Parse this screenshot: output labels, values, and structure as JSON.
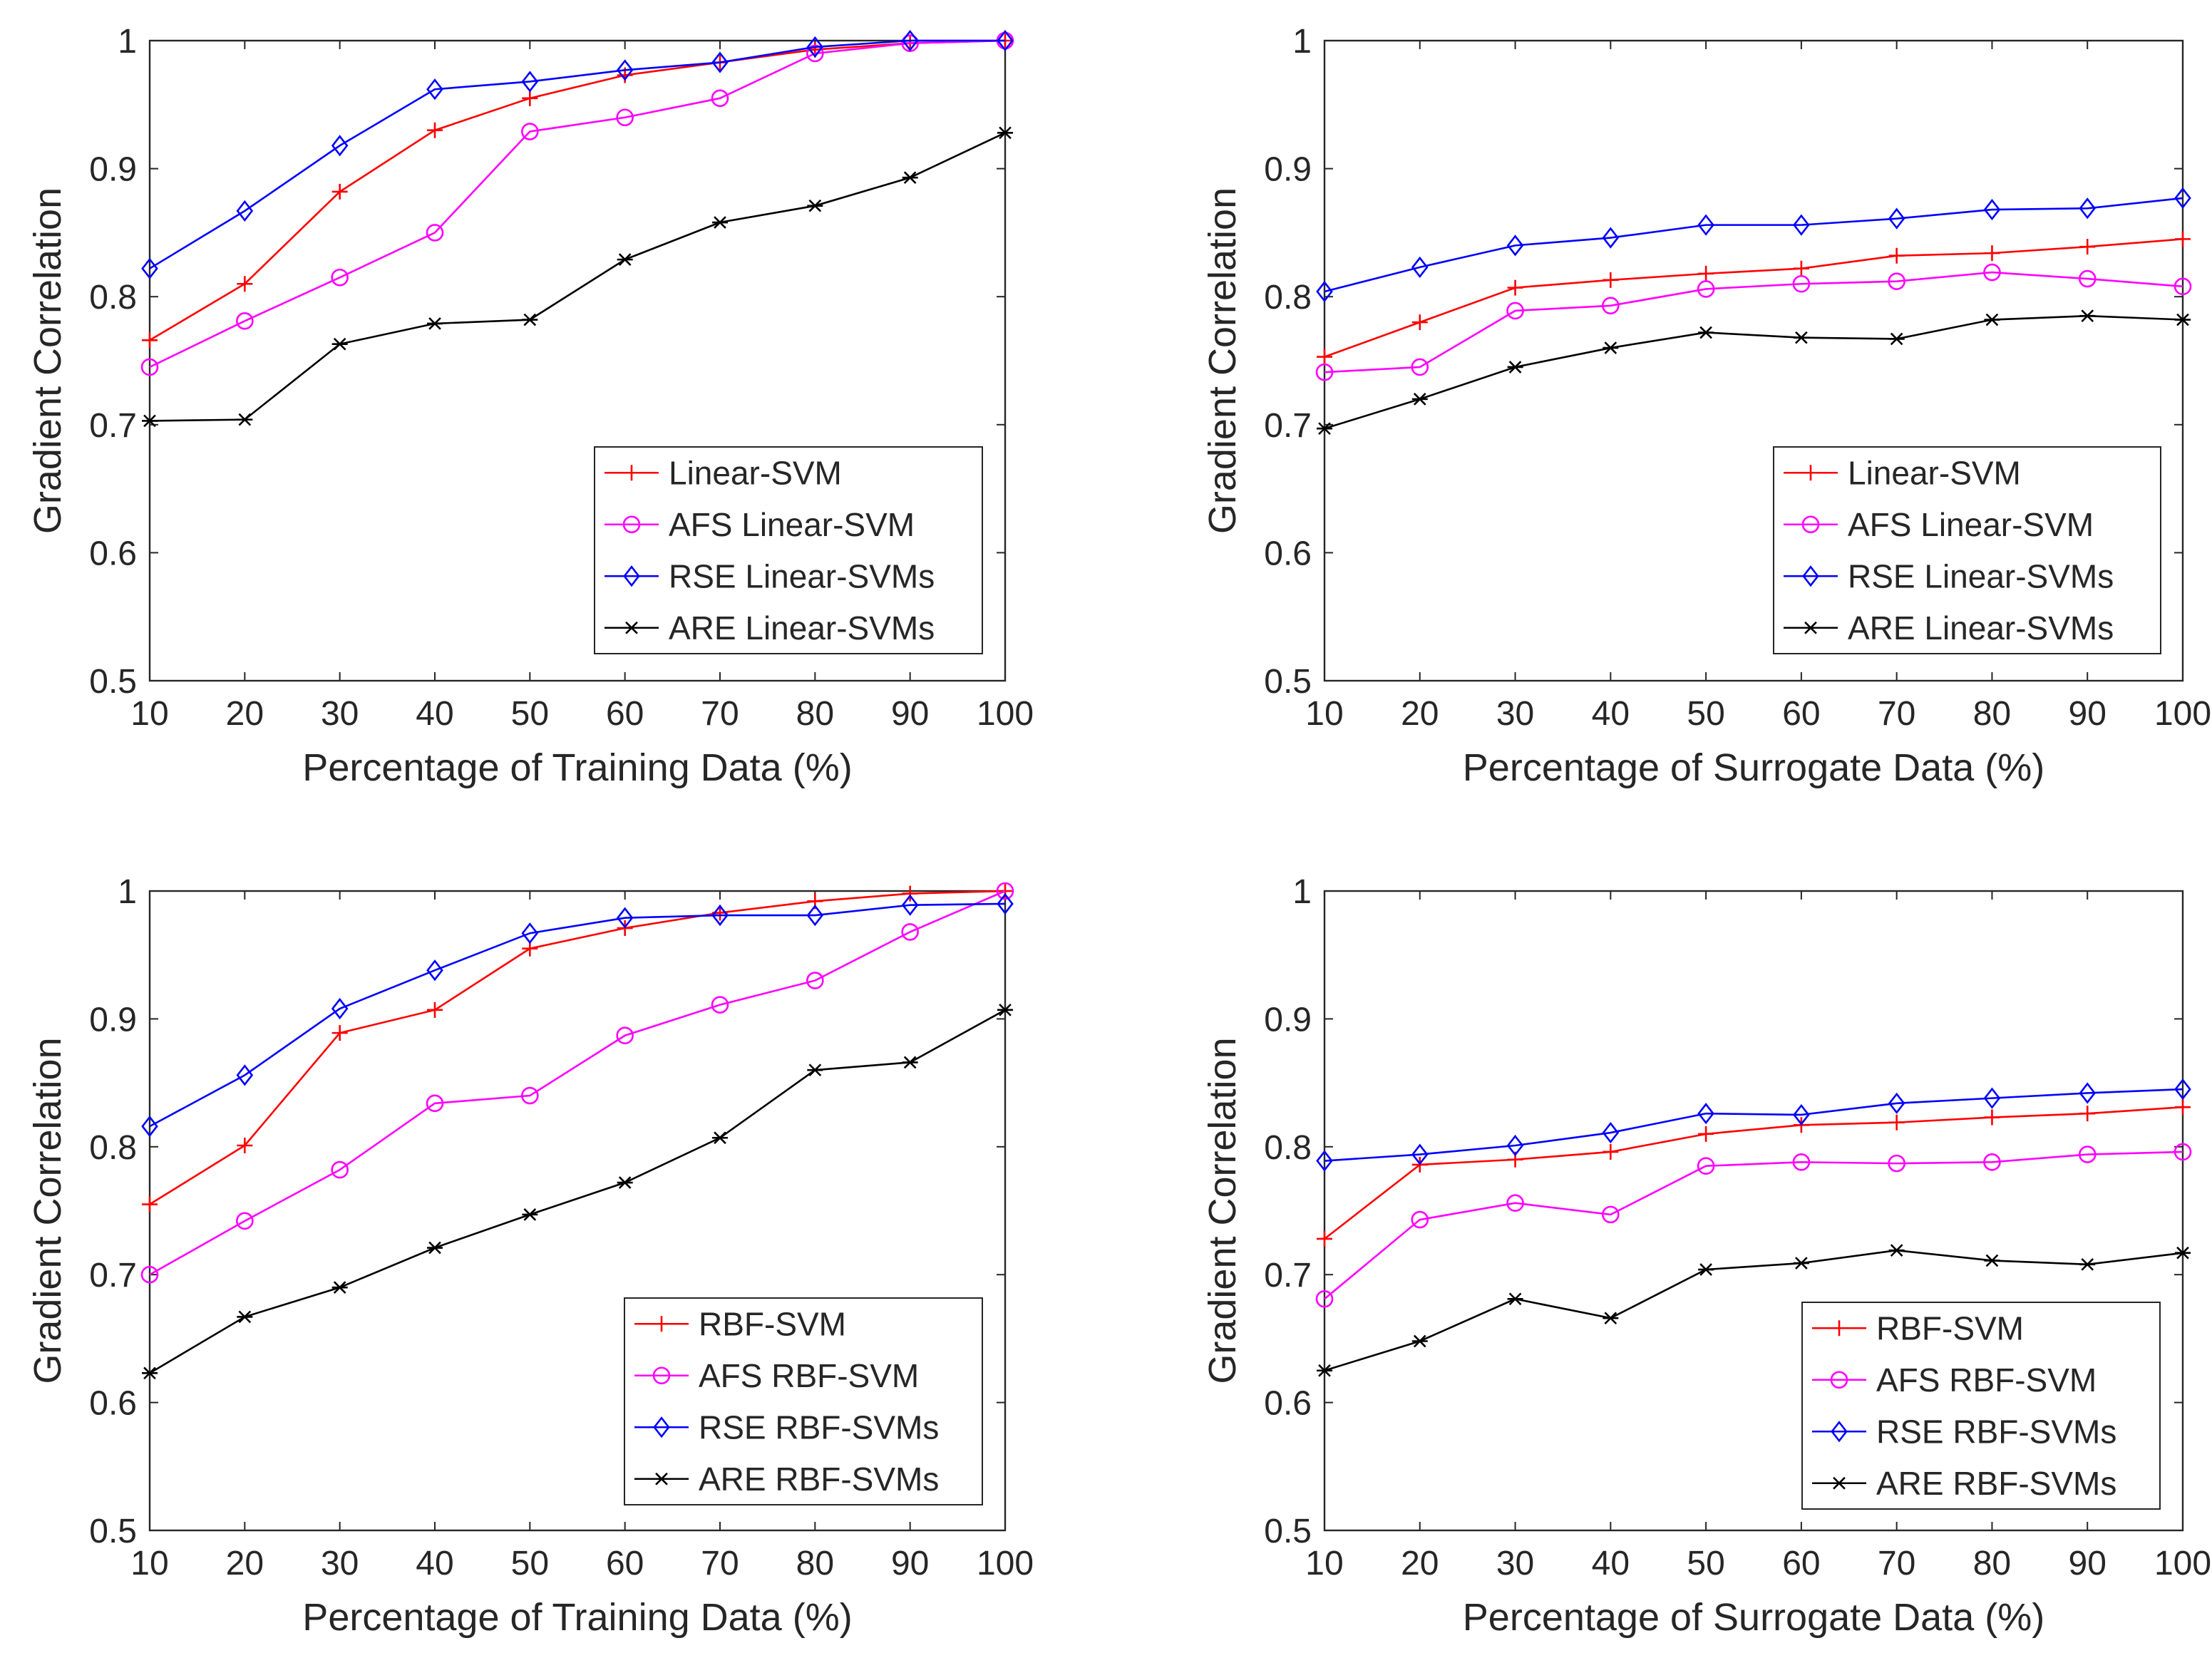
{
  "chart_data": [
    {
      "type": "line",
      "title": "",
      "xlabel": "Percentage of Training Data (%)",
      "ylabel": "Gradient Correlation",
      "x": [
        10,
        20,
        30,
        40,
        50,
        60,
        70,
        80,
        90,
        100
      ],
      "x_ticks": [
        "10",
        "20",
        "30",
        "40",
        "50",
        "60",
        "70",
        "80",
        "90",
        "100"
      ],
      "y_ticks": [
        "0.5",
        "0.6",
        "0.7",
        "0.8",
        "0.9",
        "1"
      ],
      "xlim": [
        10,
        100
      ],
      "ylim": [
        0.5,
        1
      ],
      "grid": false,
      "legend_position": "bottom-right",
      "series": [
        {
          "name": "Linear-SVM",
          "color": "#ff0000",
          "marker": "plus",
          "values": [
            0.766,
            0.81,
            0.882,
            0.93,
            0.955,
            0.973,
            0.983,
            0.993,
            0.998,
            1.0
          ]
        },
        {
          "name": "AFS Linear-SVM",
          "color": "#ff00ff",
          "marker": "circle",
          "values": [
            0.745,
            0.781,
            0.815,
            0.85,
            0.929,
            0.94,
            0.955,
            0.99,
            0.998,
            1.0
          ]
        },
        {
          "name": "RSE Linear-SVMs",
          "color": "#0000ff",
          "marker": "diamond",
          "values": [
            0.822,
            0.867,
            0.918,
            0.962,
            0.968,
            0.977,
            0.983,
            0.995,
            1.0,
            1.0
          ]
        },
        {
          "name": "ARE Linear-SVMs",
          "color": "#000000",
          "marker": "asterisk",
          "values": [
            0.703,
            0.704,
            0.763,
            0.779,
            0.782,
            0.829,
            0.858,
            0.871,
            0.893,
            0.928
          ]
        }
      ]
    },
    {
      "type": "line",
      "title": "",
      "xlabel": "Percentage of Surrogate Data (%)",
      "ylabel": "Gradient Correlation",
      "x": [
        10,
        20,
        30,
        40,
        50,
        60,
        70,
        80,
        90,
        100
      ],
      "x_ticks": [
        "10",
        "20",
        "30",
        "40",
        "50",
        "60",
        "70",
        "80",
        "90",
        "100"
      ],
      "y_ticks": [
        "0.5",
        "0.6",
        "0.7",
        "0.8",
        "0.9",
        "1"
      ],
      "xlim": [
        10,
        100
      ],
      "ylim": [
        0.5,
        1
      ],
      "grid": false,
      "legend_position": "bottom-right",
      "series": [
        {
          "name": "Linear-SVM",
          "color": "#ff0000",
          "marker": "plus",
          "values": [
            0.753,
            0.78,
            0.807,
            0.813,
            0.818,
            0.822,
            0.832,
            0.834,
            0.839,
            0.845
          ]
        },
        {
          "name": "AFS Linear-SVM",
          "color": "#ff00ff",
          "marker": "circle",
          "values": [
            0.741,
            0.745,
            0.789,
            0.793,
            0.806,
            0.81,
            0.812,
            0.819,
            0.814,
            0.808
          ]
        },
        {
          "name": "RSE Linear-SVMs",
          "color": "#0000ff",
          "marker": "diamond",
          "values": [
            0.804,
            0.823,
            0.84,
            0.846,
            0.856,
            0.856,
            0.861,
            0.868,
            0.869,
            0.877
          ]
        },
        {
          "name": "ARE Linear-SVMs",
          "color": "#000000",
          "marker": "asterisk",
          "values": [
            0.697,
            0.72,
            0.745,
            0.76,
            0.772,
            0.768,
            0.767,
            0.782,
            0.785,
            0.782
          ]
        }
      ]
    },
    {
      "type": "line",
      "title": "",
      "xlabel": "Percentage of Training Data (%)",
      "ylabel": "Gradient Correlation",
      "x": [
        10,
        20,
        30,
        40,
        50,
        60,
        70,
        80,
        90,
        100
      ],
      "x_ticks": [
        "10",
        "20",
        "30",
        "40",
        "50",
        "60",
        "70",
        "80",
        "90",
        "100"
      ],
      "y_ticks": [
        "0.5",
        "0.6",
        "0.7",
        "0.8",
        "0.9",
        "1"
      ],
      "xlim": [
        10,
        100
      ],
      "ylim": [
        0.5,
        1
      ],
      "grid": false,
      "legend_position": "bottom-right",
      "series": [
        {
          "name": "RBF-SVM",
          "color": "#ff0000",
          "marker": "plus",
          "values": [
            0.755,
            0.801,
            0.889,
            0.907,
            0.955,
            0.971,
            0.983,
            0.992,
            0.998,
            1.0
          ]
        },
        {
          "name": "AFS RBF-SVM",
          "color": "#ff00ff",
          "marker": "circle",
          "values": [
            0.7,
            0.742,
            0.782,
            0.834,
            0.84,
            0.887,
            0.911,
            0.93,
            0.968,
            1.0
          ]
        },
        {
          "name": "RSE RBF-SVMs",
          "color": "#0000ff",
          "marker": "diamond",
          "values": [
            0.816,
            0.856,
            0.908,
            0.938,
            0.967,
            0.979,
            0.981,
            0.981,
            0.989,
            0.99
          ]
        },
        {
          "name": "ARE RBF-SVMs",
          "color": "#000000",
          "marker": "asterisk",
          "values": [
            0.623,
            0.667,
            0.69,
            0.721,
            0.747,
            0.772,
            0.807,
            0.86,
            0.866,
            0.907
          ]
        }
      ]
    },
    {
      "type": "line",
      "title": "",
      "xlabel": "Percentage of Surrogate Data (%)",
      "ylabel": "Gradient Correlation",
      "x": [
        10,
        20,
        30,
        40,
        50,
        60,
        70,
        80,
        90,
        100
      ],
      "x_ticks": [
        "10",
        "20",
        "30",
        "40",
        "50",
        "60",
        "70",
        "80",
        "90",
        "100"
      ],
      "y_ticks": [
        "0.5",
        "0.6",
        "0.7",
        "0.8",
        "0.9",
        "1"
      ],
      "xlim": [
        10,
        100
      ],
      "ylim": [
        0.5,
        1
      ],
      "grid": false,
      "legend_position": "bottom-right",
      "series": [
        {
          "name": "RBF-SVM",
          "color": "#ff0000",
          "marker": "plus",
          "values": [
            0.728,
            0.786,
            0.79,
            0.796,
            0.81,
            0.817,
            0.819,
            0.823,
            0.826,
            0.831
          ]
        },
        {
          "name": "AFS RBF-SVM",
          "color": "#ff00ff",
          "marker": "circle",
          "values": [
            0.681,
            0.743,
            0.756,
            0.747,
            0.785,
            0.788,
            0.787,
            0.788,
            0.794,
            0.796
          ]
        },
        {
          "name": "RSE RBF-SVMs",
          "color": "#0000ff",
          "marker": "diamond",
          "values": [
            0.789,
            0.794,
            0.801,
            0.811,
            0.826,
            0.825,
            0.834,
            0.838,
            0.842,
            0.845
          ]
        },
        {
          "name": "ARE RBF-SVMs",
          "color": "#000000",
          "marker": "asterisk",
          "values": [
            0.625,
            0.648,
            0.681,
            0.666,
            0.704,
            0.709,
            0.719,
            0.711,
            0.708,
            0.717
          ]
        }
      ]
    }
  ]
}
